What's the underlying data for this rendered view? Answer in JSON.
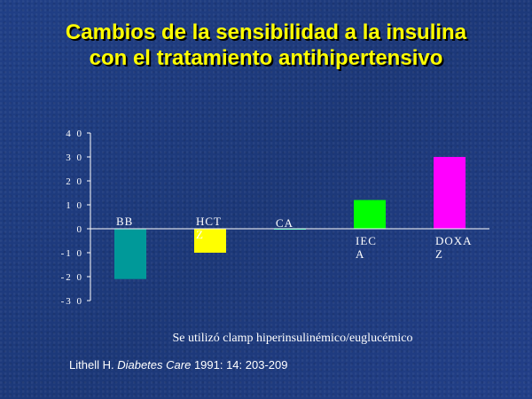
{
  "title_line1": "Cambios de la sensibilidad a la insulina",
  "title_line2": "con el tratamiento antihipertensivo",
  "note": "Se utilizó clamp hiperinsulinémico/euglucémico",
  "source": {
    "author": "Lithell H.",
    "journal": "Diabetes Care",
    "rest": "1991: 14: 203-209"
  },
  "chart_data": {
    "type": "bar",
    "categories": [
      "BB",
      "HCTZ",
      "CA",
      "IECA",
      "DOXAZ"
    ],
    "category_label_lines": [
      [
        "BB"
      ],
      [
        "HCT",
        "Z"
      ],
      [
        "CA"
      ],
      [
        "IEC",
        "A"
      ],
      [
        "DOXA",
        "Z"
      ]
    ],
    "values": [
      -21,
      -10,
      0,
      12,
      30
    ],
    "colors": [
      "#009999",
      "#ffff00",
      "#00ff99",
      "#00ff00",
      "#ff00ff"
    ],
    "yticks": [
      "4 0",
      "3 0",
      "2 0",
      "1 0",
      "0",
      "-1 0",
      "-2 0",
      "-3 0"
    ],
    "ytick_values": [
      40,
      30,
      20,
      10,
      0,
      -10,
      -20,
      -30
    ],
    "ylim": [
      -30,
      40
    ],
    "grid": false,
    "title": "",
    "xlabel": "",
    "ylabel": ""
  }
}
